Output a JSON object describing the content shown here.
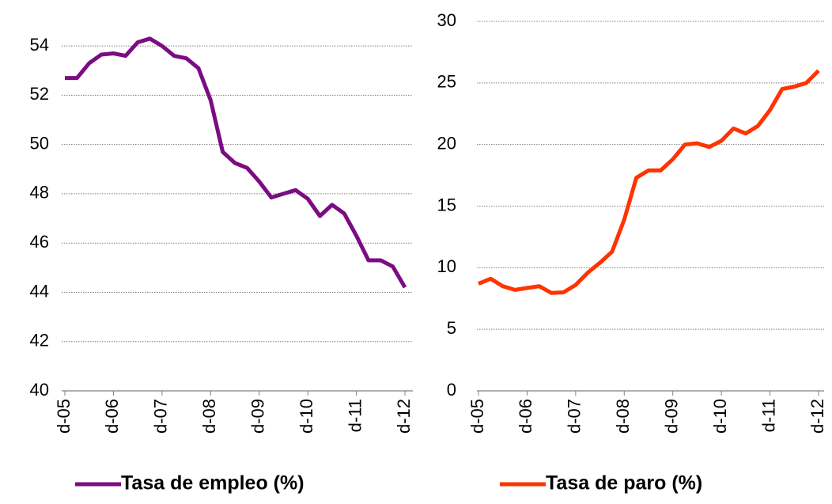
{
  "chart_data": [
    {
      "type": "line",
      "categories": [
        "d-05",
        null,
        null,
        null,
        "d-06",
        null,
        null,
        null,
        "d-07",
        null,
        null,
        null,
        "d-08",
        null,
        null,
        null,
        "d-09",
        null,
        null,
        null,
        "d-10",
        null,
        null,
        null,
        "d-11",
        null,
        null,
        null,
        "d-12"
      ],
      "series": [
        {
          "name": "Tasa de empleo (%)",
          "color": "#7b0c83",
          "values": [
            52.7,
            52.7,
            53.3,
            53.65,
            53.7,
            53.6,
            54.15,
            54.3,
            54.0,
            53.6,
            53.5,
            53.1,
            51.8,
            49.7,
            49.25,
            49.05,
            48.5,
            47.85,
            48.0,
            48.15,
            47.8,
            47.1,
            47.55,
            47.2,
            46.3,
            45.3,
            45.3,
            45.05,
            44.2
          ]
        }
      ],
      "ylim": [
        40,
        55
      ],
      "yticks": [
        40,
        42,
        44,
        46,
        48,
        50,
        52,
        54
      ],
      "grid": true,
      "legend": "bottom"
    },
    {
      "type": "line",
      "categories": [
        "d-05",
        null,
        null,
        null,
        "d-06",
        null,
        null,
        null,
        "d-07",
        null,
        null,
        null,
        "d-08",
        null,
        null,
        null,
        "d-09",
        null,
        null,
        null,
        "d-10",
        null,
        null,
        null,
        "d-11",
        null,
        null,
        null,
        "d-12"
      ],
      "series": [
        {
          "name": "Tasa de paro (%)",
          "color": "#ff3300",
          "values": [
            8.7,
            9.1,
            8.5,
            8.2,
            8.35,
            8.5,
            7.95,
            8.0,
            8.6,
            9.6,
            10.4,
            11.3,
            13.9,
            17.3,
            17.9,
            17.9,
            18.8,
            20.0,
            20.1,
            19.8,
            20.3,
            21.3,
            20.9,
            21.5,
            22.8,
            24.5,
            24.7,
            25.0,
            26.0
          ]
        }
      ],
      "ylim": [
        0,
        30
      ],
      "yticks": [
        0,
        5,
        10,
        15,
        20,
        25,
        30
      ],
      "grid": true,
      "legend": "bottom"
    }
  ]
}
